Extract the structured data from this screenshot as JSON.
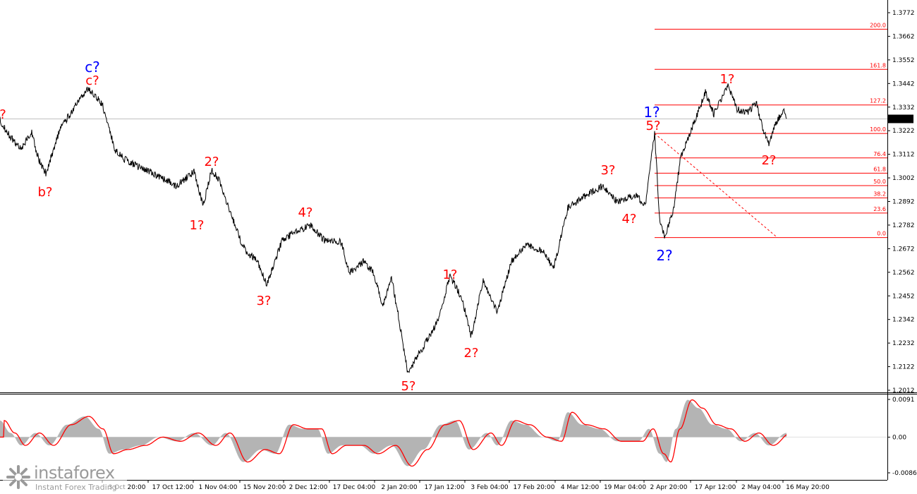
{
  "price_axis": {
    "ticks": [
      "1.3772",
      "1.3662",
      "1.3552",
      "1.3442",
      "1.3332",
      "1.3222",
      "1.3112",
      "1.3002",
      "1.2892",
      "1.2782",
      "1.2672",
      "1.2562",
      "1.2452",
      "1.2342",
      "1.2232",
      "1.2122",
      "1.2012"
    ],
    "current_price": "1.3277"
  },
  "osc_axis": {
    "ticks": [
      "0.0091",
      "0.00",
      "-0.00862"
    ]
  },
  "time_axis": {
    "labels": [
      "3 Oct 20:00",
      "17 Oct 12:00",
      "1 Nov 04:00",
      "15 Nov 20:00",
      "2 Dec 12:00",
      "17 Dec 04:00",
      "2 Jan 20:00",
      "17 Jan 12:00",
      "3 Feb 04:00",
      "17 Feb 20:00",
      "4 Mar 12:00",
      "19 Mar 04:00",
      "2 Apr 20:00",
      "17 Apr 12:00",
      "2 May 04:00",
      "16 May 20:00"
    ]
  },
  "fibonacci": {
    "levels": [
      "200.0",
      "161.8",
      "127.2",
      "100.0",
      "76.4",
      "61.8",
      "50.0",
      "38.2",
      "23.6",
      "0.0"
    ]
  },
  "wave_labels": {
    "red": [
      "?",
      "c?",
      "b?",
      "2?",
      "1?",
      "3?",
      "4?",
      "5?",
      "1?",
      "2?",
      "3?",
      "4?",
      "5?",
      "1?",
      "2?"
    ],
    "blue": [
      "c?",
      "1?",
      "2?"
    ]
  },
  "watermark": {
    "brand": "instaforex",
    "tagline": "Instant Forex Trading"
  },
  "colors": {
    "background": "#ffffff",
    "price_line": "#000000",
    "fib_line": "#ff0000",
    "wave_red": "#ff0000",
    "wave_blue": "#0000ff",
    "histogram": "#b4b4b4",
    "signal": "#ff0000"
  },
  "chart_data": {
    "type": "line",
    "series": [
      {
        "x": [
          "3 Oct 20:00",
          "17 Oct 12:00",
          "1 Nov 04:00",
          "15 Nov 20:00",
          "2 Dec 12:00",
          "17 Dec 04:00",
          "2 Jan 20:00",
          "17 Jan 12:00",
          "3 Feb 04:00",
          "17 Feb 20:00",
          "4 Mar 12:00",
          "19 Mar 04:00",
          "2 Apr 20:00",
          "17 Apr 12:00",
          "2 May 04:00",
          "16 May 20:00"
        ],
        "values": [
          1.332,
          1.313,
          1.299,
          1.251,
          1.272,
          1.258,
          1.212,
          1.247,
          1.238,
          1.265,
          1.289,
          1.288,
          1.277,
          1.334,
          1.331,
          1.328
        ]
      }
    ],
    "ylim": [
      1.2012,
      1.3772
    ],
    "fib_levels": [
      {
        "label": "200.0",
        "value": 1.3695
      },
      {
        "label": "161.8",
        "value": 1.3508
      },
      {
        "label": "127.2",
        "value": 1.3342
      },
      {
        "label": "100.0",
        "value": 1.3209
      },
      {
        "label": "76.4",
        "value": 1.3095
      },
      {
        "label": "61.8",
        "value": 1.3024
      },
      {
        "label": "50.0",
        "value": 1.2966
      },
      {
        "label": "38.2",
        "value": 1.2909
      },
      {
        "label": "23.6",
        "value": 1.2838
      },
      {
        "label": "0.0",
        "value": 1.2724
      }
    ],
    "oscillator": {
      "ylim": [
        -0.00862,
        0.0091
      ]
    }
  }
}
